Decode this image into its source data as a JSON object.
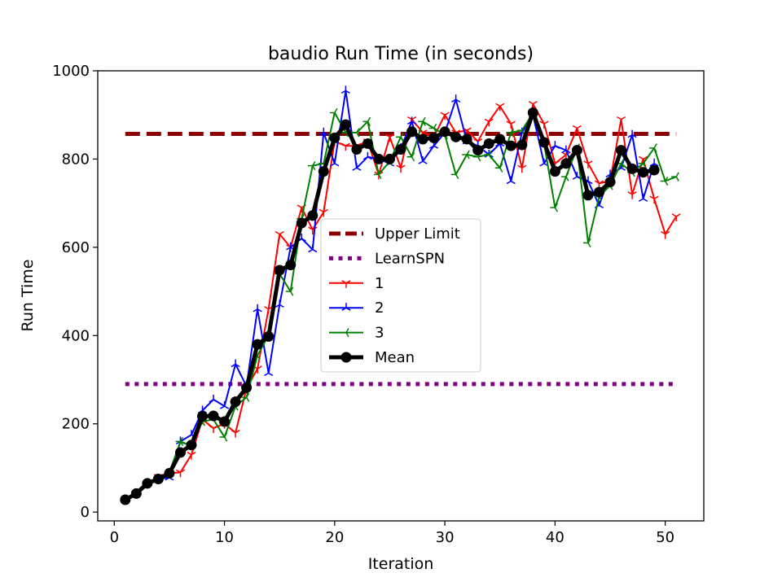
{
  "chart_data": {
    "type": "line",
    "title": "baudio Run Time (in seconds)",
    "xlabel": "Iteration",
    "ylabel": "Run Time",
    "xlim": [
      -1.5,
      53.5
    ],
    "ylim": [
      -20,
      1000
    ],
    "xticks": [
      0,
      10,
      20,
      30,
      40,
      50
    ],
    "yticks": [
      0,
      200,
      400,
      600,
      800,
      1000
    ],
    "grid": false,
    "legend_position": "center",
    "series": [
      {
        "name": "Upper Limit",
        "color": "#8b0000",
        "style": "dashed",
        "x": [
          1,
          51
        ],
        "y": [
          857,
          857
        ]
      },
      {
        "name": "LearnSPN",
        "color": "#800080",
        "style": "dotted",
        "x": [
          1,
          51
        ],
        "y": [
          290,
          290
        ]
      },
      {
        "name": "1",
        "color": "#ff0000",
        "style": "solid",
        "marker": "tri_down",
        "x": [
          1,
          2,
          3,
          4,
          5,
          6,
          7,
          8,
          9,
          10,
          11,
          12,
          13,
          14,
          15,
          16,
          17,
          18,
          19,
          20,
          21,
          22,
          23,
          24,
          25,
          26,
          27,
          28,
          29,
          30,
          31,
          32,
          33,
          34,
          35,
          36,
          37,
          38,
          39,
          40,
          41,
          42,
          43,
          44,
          45,
          46,
          47,
          48,
          49,
          50,
          51
        ],
        "y": [
          28,
          42,
          65,
          80,
          88,
          90,
          130,
          210,
          190,
          200,
          180,
          280,
          325,
          460,
          630,
          600,
          690,
          640,
          680,
          840,
          830,
          830,
          840,
          765,
          850,
          780,
          890,
          860,
          850,
          900,
          860,
          865,
          840,
          885,
          920,
          880,
          780,
          925,
          880,
          790,
          810,
          870,
          790,
          745,
          750,
          890,
          720,
          800,
          710,
          630,
          670
        ]
      },
      {
        "name": "2",
        "color": "#0000ff",
        "style": "solid",
        "marker": "tri_up",
        "x": [
          1,
          2,
          3,
          4,
          5,
          6,
          7,
          8,
          9,
          10,
          11,
          12,
          13,
          14,
          15,
          16,
          17,
          18,
          19,
          20,
          21,
          22,
          23,
          24,
          25,
          26,
          27,
          28,
          29,
          30,
          31,
          32,
          33,
          34,
          35,
          36,
          37,
          38,
          39,
          40,
          41,
          42,
          43,
          44,
          45,
          46,
          47,
          48,
          49
        ],
        "y": [
          28,
          42,
          65,
          75,
          78,
          160,
          175,
          230,
          255,
          240,
          335,
          285,
          460,
          315,
          470,
          600,
          620,
          595,
          860,
          790,
          955,
          780,
          805,
          800,
          790,
          825,
          885,
          795,
          830,
          860,
          935,
          840,
          830,
          810,
          835,
          750,
          860,
          900,
          790,
          830,
          820,
          760,
          750,
          695,
          765,
          780,
          855,
          710,
          790
        ]
      },
      {
        "name": "3",
        "color": "#008000",
        "style": "solid",
        "marker": "tri_left",
        "x": [
          1,
          2,
          3,
          4,
          5,
          6,
          7,
          8,
          9,
          10,
          11,
          12,
          13,
          14,
          15,
          16,
          17,
          18,
          19,
          20,
          21,
          22,
          23,
          24,
          25,
          26,
          27,
          28,
          29,
          30,
          31,
          32,
          33,
          34,
          35,
          36,
          37,
          38,
          39,
          40,
          41,
          42,
          43,
          44,
          45,
          46,
          47,
          48,
          49,
          50,
          51
        ],
        "y": [
          28,
          42,
          65,
          75,
          90,
          160,
          150,
          205,
          210,
          170,
          240,
          260,
          355,
          400,
          540,
          500,
          665,
          785,
          790,
          905,
          860,
          860,
          885,
          765,
          795,
          850,
          805,
          885,
          870,
          855,
          765,
          810,
          805,
          810,
          780,
          860,
          865,
          905,
          835,
          690,
          760,
          825,
          610,
          715,
          740,
          790,
          770,
          790,
          825,
          750,
          760
        ]
      },
      {
        "name": "Mean",
        "color": "#000000",
        "style": "solid",
        "marker": "circle",
        "x": [
          1,
          2,
          3,
          4,
          5,
          6,
          7,
          8,
          9,
          10,
          11,
          12,
          13,
          14,
          15,
          16,
          17,
          18,
          19,
          20,
          21,
          22,
          23,
          24,
          25,
          26,
          27,
          28,
          29,
          30,
          31,
          32,
          33,
          34,
          35,
          36,
          37,
          38,
          39,
          40,
          41,
          42,
          43,
          44,
          45,
          46,
          47,
          48,
          49
        ],
        "y": [
          28,
          42,
          65,
          75,
          88,
          135,
          152,
          217,
          218,
          205,
          250,
          282,
          380,
          398,
          548,
          560,
          655,
          672,
          772,
          848,
          878,
          822,
          835,
          800,
          800,
          822,
          862,
          845,
          848,
          862,
          850,
          845,
          820,
          835,
          845,
          830,
          832,
          905,
          838,
          772,
          790,
          820,
          718,
          725,
          748,
          820,
          778,
          770,
          775
        ]
      }
    ]
  }
}
